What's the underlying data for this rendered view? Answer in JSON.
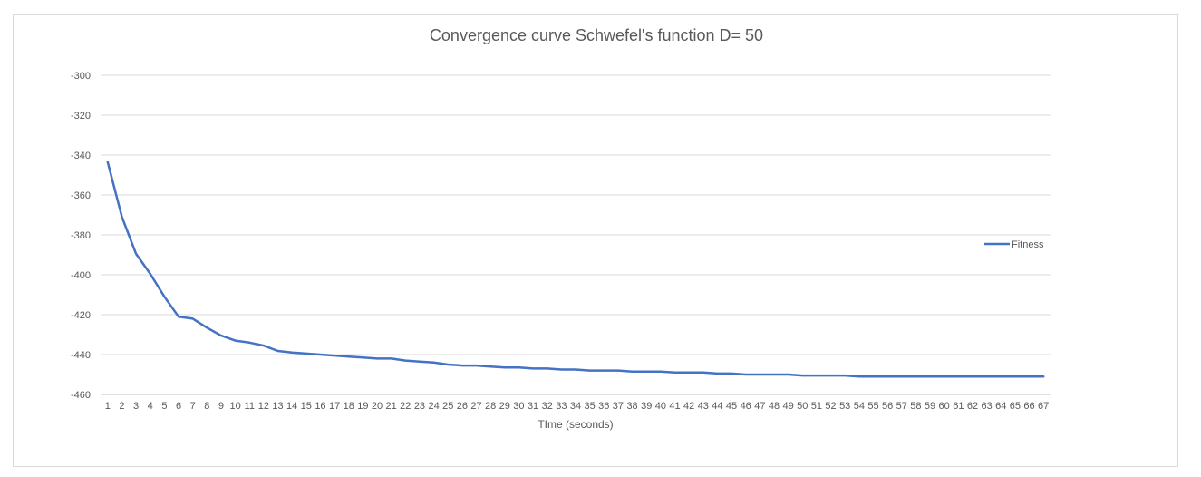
{
  "chart_data": {
    "type": "line",
    "title": "Convergence curve Schwefel's function D= 50",
    "xlabel": "TIme (seconds)",
    "ylabel": "",
    "ylim": [
      -460,
      -300
    ],
    "yticks": [
      -300,
      -320,
      -340,
      -360,
      -380,
      -400,
      -420,
      -440,
      -460
    ],
    "grid": true,
    "legend_position": "right",
    "categories": [
      "1",
      "2",
      "3",
      "4",
      "5",
      "6",
      "7",
      "8",
      "9",
      "10",
      "11",
      "12",
      "13",
      "14",
      "15",
      "16",
      "17",
      "18",
      "19",
      "20",
      "21",
      "22",
      "23",
      "24",
      "25",
      "26",
      "27",
      "28",
      "29",
      "30",
      "31",
      "32",
      "33",
      "34",
      "35",
      "36",
      "37",
      "38",
      "39",
      "40",
      "41",
      "42",
      "43",
      "44",
      "45",
      "46",
      "47",
      "48",
      "49",
      "50",
      "51",
      "52",
      "53",
      "54",
      "55",
      "56",
      "57",
      "58",
      "59",
      "60",
      "61",
      "62",
      "63",
      "64",
      "65",
      "66",
      "67"
    ],
    "series": [
      {
        "name": "Fitness",
        "color": "#4472c4",
        "values": [
          -343.5,
          -371,
          -389.5,
          -399.5,
          -411,
          -421,
          -422,
          -426.5,
          -430.5,
          -433,
          -434,
          -435.5,
          -438.2,
          -439,
          -439.5,
          -440,
          -440.5,
          -441,
          -441.5,
          -442,
          -442,
          -443,
          -443.5,
          -444,
          -445,
          -445.5,
          -445.5,
          -446,
          -446.5,
          -446.5,
          -447,
          -447,
          -447.5,
          -447.5,
          -448,
          -448,
          -448,
          -448.5,
          -448.5,
          -448.5,
          -449,
          -449,
          -449,
          -449.5,
          -449.5,
          -450,
          -450,
          -450,
          -450,
          -450.5,
          -450.5,
          -450.5,
          -450.5,
          -451,
          -451,
          -451,
          -451,
          -451,
          -451,
          -451,
          -451,
          -451,
          -451,
          -451,
          -451,
          -451,
          -451
        ]
      }
    ]
  }
}
